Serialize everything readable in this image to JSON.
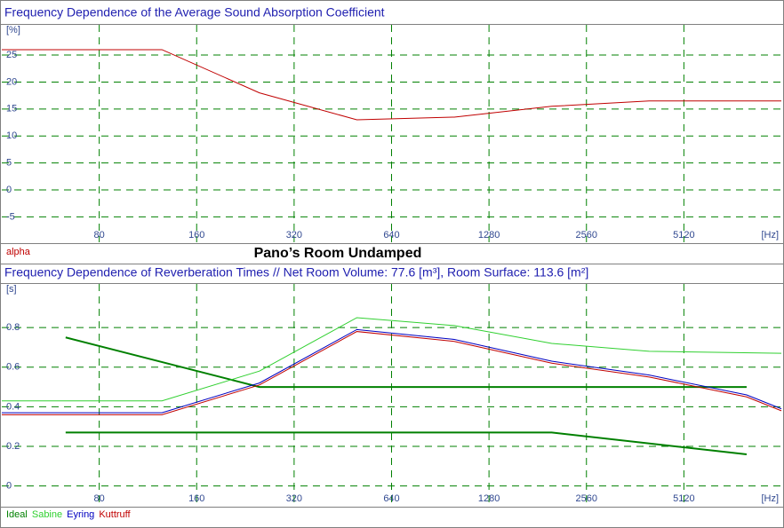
{
  "title": "Pano’s Room Undamped",
  "chart_data": [
    {
      "type": "line",
      "title": "Frequency Dependence of the Average Sound Absorption Coefficient",
      "xlabel": "[Hz]",
      "ylabel": "[%]",
      "xscale": "log",
      "grid": true,
      "xlim": [
        40,
        10240
      ],
      "xticks": [
        80,
        160,
        320,
        640,
        1280,
        2560,
        5120
      ],
      "ylim": [
        -9.7,
        30.6
      ],
      "yticks": [
        25,
        20,
        15,
        10,
        5,
        0,
        -5
      ],
      "series": [
        {
          "name": "alpha",
          "color": "#c00000",
          "x": [
            40,
            125,
            250,
            500,
            1000,
            2000,
            4000,
            10240
          ],
          "values": [
            26,
            26,
            18,
            13,
            13.5,
            15.5,
            16.5,
            16.5
          ]
        }
      ]
    },
    {
      "type": "line",
      "title": "Frequency Dependence of Reverberation Times // Net Room Volume: 77.6 [m³], Room Surface: 113.6 [m²]",
      "xlabel": "[Hz]",
      "ylabel": "[s]",
      "xscale": "log",
      "grid": true,
      "xlim": [
        40,
        10240
      ],
      "xticks": [
        80,
        160,
        320,
        640,
        1280,
        2560,
        5120
      ],
      "ylim": [
        -0.1,
        1.02
      ],
      "yticks": [
        0.8,
        0.6,
        0.4,
        0.2,
        0
      ],
      "series": [
        {
          "name": "Ideal",
          "color": "#008000",
          "x": [
            63,
            250,
            8000,
            null,
            63,
            2000,
            8000
          ],
          "values": [
            0.75,
            0.5,
            0.5,
            null,
            0.27,
            0.27,
            0.16
          ]
        },
        {
          "name": "Sabine",
          "color": "#30d030",
          "x": [
            40,
            125,
            250,
            500,
            1000,
            2000,
            4000,
            10240
          ],
          "values": [
            0.43,
            0.43,
            0.58,
            0.85,
            0.81,
            0.72,
            0.68,
            0.67
          ]
        },
        {
          "name": "Eyring",
          "color": "#0000c0",
          "x": [
            40,
            125,
            250,
            500,
            1000,
            2000,
            4000,
            8000,
            10240
          ],
          "values": [
            0.37,
            0.37,
            0.52,
            0.79,
            0.74,
            0.63,
            0.56,
            0.46,
            0.39
          ]
        },
        {
          "name": "Kuttruff",
          "color": "#c00000",
          "x": [
            40,
            125,
            250,
            500,
            1000,
            2000,
            4000,
            8000,
            10240
          ],
          "values": [
            0.36,
            0.36,
            0.51,
            0.78,
            0.73,
            0.62,
            0.55,
            0.45,
            0.38
          ]
        }
      ]
    }
  ]
}
